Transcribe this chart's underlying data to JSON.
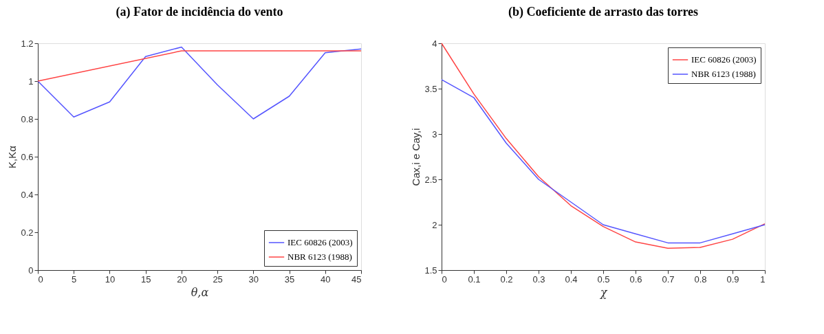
{
  "chart_data": [
    {
      "type": "line",
      "title": "(a) Fator de incidência do vento",
      "xlabel": "θ,α",
      "ylabel": "K,Kα",
      "xlim": [
        0,
        45
      ],
      "xticks": [
        0,
        5,
        10,
        15,
        20,
        25,
        30,
        35,
        40,
        45
      ],
      "ylim": [
        0,
        1.2
      ],
      "yticks": [
        0,
        0.2,
        0.4,
        0.6,
        0.8,
        1,
        1.2
      ],
      "grid": false,
      "legend": "bottom right",
      "line_style": "solid",
      "series": [
        {
          "name": "IEC 60826 (2003)",
          "color": "#5555ff",
          "x": [
            0,
            5,
            10,
            15,
            20,
            25,
            30,
            35,
            40,
            45
          ],
          "values": [
            1.0,
            0.81,
            0.89,
            1.13,
            1.18,
            0.98,
            0.8,
            0.92,
            1.15,
            1.17
          ]
        },
        {
          "name": "NBR 6123 (1988)",
          "color": "#ff4444",
          "x": [
            0,
            20,
            45
          ],
          "values": [
            1.0,
            1.16,
            1.16
          ]
        }
      ]
    },
    {
      "type": "line",
      "title": "(b) Coeficiente de arrasto das torres",
      "xlabel": "χ",
      "ylabel": "Cax,i e Cay,i",
      "xlim": [
        0,
        1
      ],
      "xticks": [
        0,
        0.1,
        0.2,
        0.3,
        0.4,
        0.5,
        0.6,
        0.7,
        0.8,
        0.9,
        1
      ],
      "ylim": [
        1.5,
        4
      ],
      "yticks": [
        1.5,
        2,
        2.5,
        3,
        3.5,
        4
      ],
      "grid": false,
      "legend": "top right",
      "line_style": "solid",
      "series": [
        {
          "name": "IEC 60826 (2003)",
          "color": "#ff4444",
          "x": [
            0,
            0.1,
            0.2,
            0.3,
            0.4,
            0.5,
            0.6,
            0.7,
            0.8,
            0.9,
            1
          ],
          "values": [
            4.0,
            3.44,
            2.95,
            2.53,
            2.21,
            1.98,
            1.81,
            1.74,
            1.75,
            1.84,
            2.01
          ]
        },
        {
          "name": "NBR 6123 (1988)",
          "color": "#5555ff",
          "x": [
            0,
            0.1,
            0.2,
            0.3,
            0.4,
            0.5,
            0.6,
            0.7,
            0.8,
            0.9,
            1
          ],
          "values": [
            3.6,
            3.4,
            2.9,
            2.5,
            2.25,
            2.0,
            1.9,
            1.8,
            1.8,
            1.9,
            2.0
          ]
        }
      ]
    }
  ]
}
